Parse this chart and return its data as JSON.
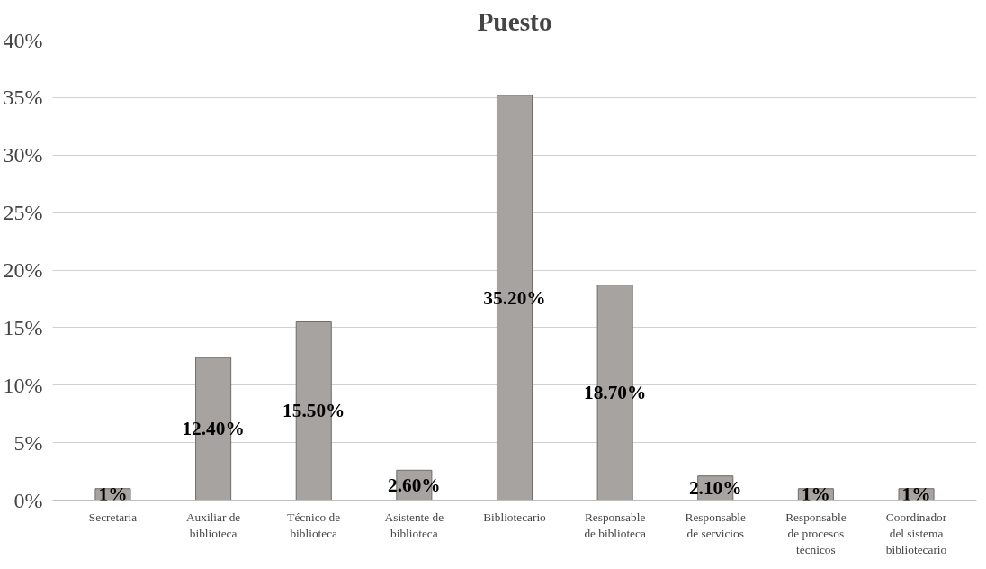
{
  "chart_data": {
    "type": "bar",
    "title": "Puesto",
    "categories": [
      "Secretaria",
      "Auxiliar de\nbiblioteca",
      "Técnico de\nbiblioteca",
      "Asistente de\nbiblioteca",
      "Bibliotecario",
      "Responsable\nde biblioteca",
      "Responsable\nde servicios",
      "Responsable\nde procesos\ntécnicos",
      "Coordinador\ndel sistema\nbibliotecario"
    ],
    "values": [
      1,
      12.4,
      15.5,
      2.6,
      35.2,
      18.7,
      2.1,
      1,
      1
    ],
    "value_labels": [
      "1%",
      "12.40%",
      "15.50%",
      "2.60%",
      "35.20%",
      "18.70%",
      "2.10%",
      "1%",
      "1%"
    ],
    "color": "#a7a3a1",
    "ylim": [
      0,
      40
    ],
    "yticks": [
      {
        "value": 0,
        "label": "0%"
      },
      {
        "value": 5,
        "label": "5%"
      },
      {
        "value": 10,
        "label": "10%"
      },
      {
        "value": 15,
        "label": "15%"
      },
      {
        "value": 20,
        "label": "20%"
      },
      {
        "value": 25,
        "label": "25%"
      },
      {
        "value": 30,
        "label": "30%"
      },
      {
        "value": 35,
        "label": "35%"
      },
      {
        "value": 40,
        "label": "40%"
      }
    ],
    "grid": "y"
  }
}
